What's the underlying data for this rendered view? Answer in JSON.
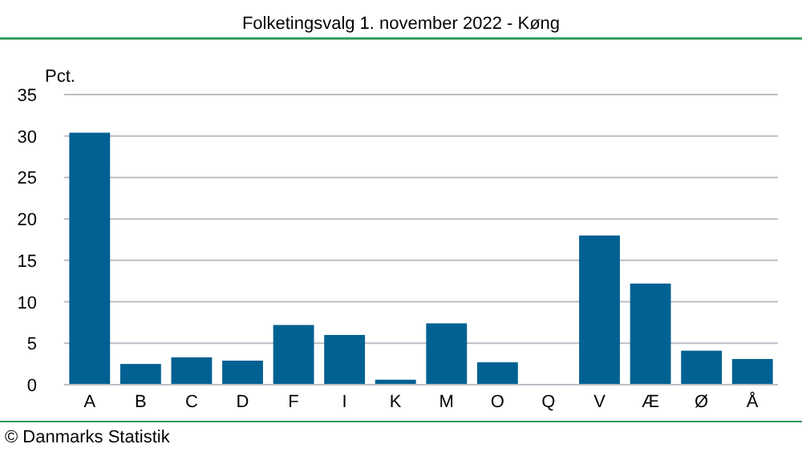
{
  "chart_data": {
    "type": "bar",
    "title": "Folketingsvalg 1. november 2022 - Køng",
    "ylabel": "Pct.",
    "categories": [
      "A",
      "B",
      "C",
      "D",
      "F",
      "I",
      "K",
      "M",
      "O",
      "Q",
      "V",
      "Æ",
      "Ø",
      "Å"
    ],
    "values": [
      30.4,
      2.5,
      3.3,
      2.9,
      7.2,
      6.0,
      0.6,
      7.4,
      2.7,
      0,
      18.0,
      12.2,
      4.1,
      3.1
    ],
    "color": "#006192",
    "ylim": [
      0,
      35
    ],
    "yticks": [
      0,
      5,
      10,
      15,
      20,
      25,
      30,
      35
    ],
    "grid": "y",
    "annotations": [
      "© Danmarks Statistik"
    ]
  }
}
